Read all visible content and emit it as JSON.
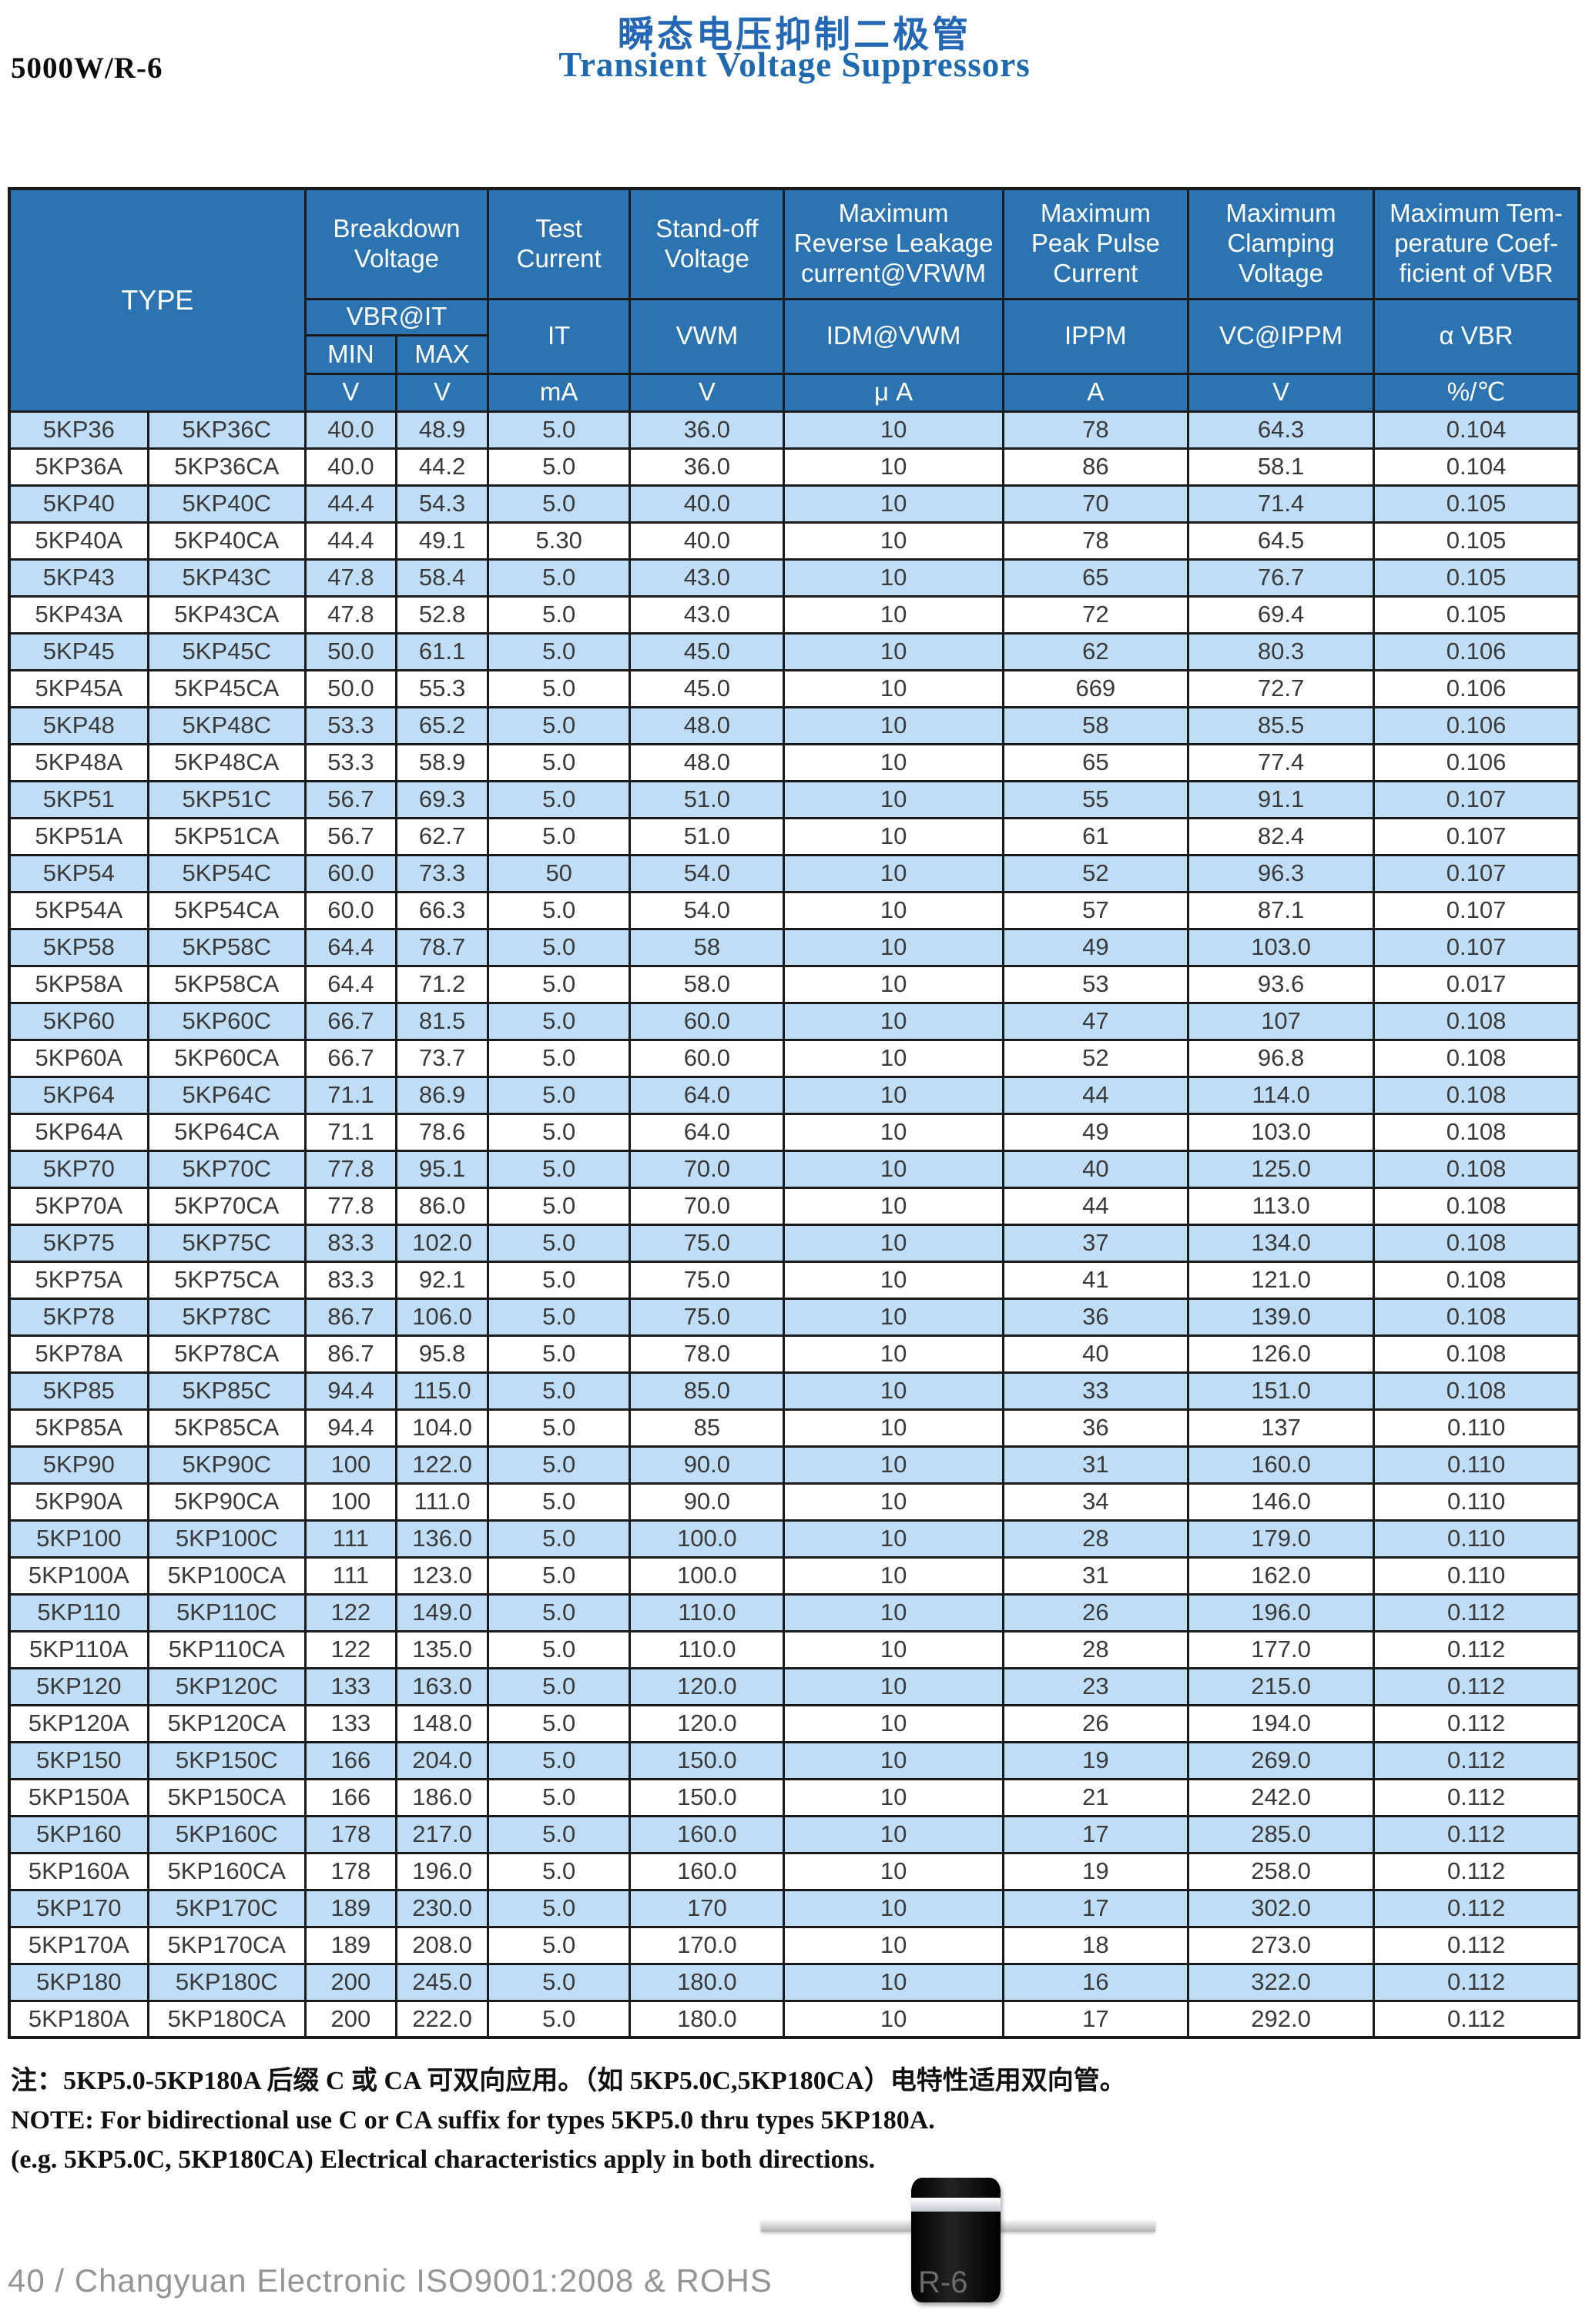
{
  "page": {
    "title_cn": "瞬态电压抑制二极管",
    "title_en": "Transient Voltage Suppressors",
    "part_series": "5000W/R-6",
    "footer_left": "40 / Changyuan Electronic  ISO9001:2008 & ROHS",
    "footer_right": "R-6"
  },
  "notes": {
    "cn": "注：5KP5.0-5KP180A 后缀 C 或 CA 可双向应用。（如 5KP5.0C,5KP180CA）电特性适用双向管。",
    "en1": "NOTE: For bidirectional use C or CA suffix for types 5KP5.0 thru types 5KP180A.",
    "en2": "(e.g. 5KP5.0C, 5KP180CA) Electrical characteristics apply in both directions."
  },
  "colors": {
    "header_bg": "#2b73b1",
    "row_alt_blue": "#bfdef6",
    "border": "#1b1b1b",
    "title_blue": "#2468b5"
  },
  "table": {
    "headers": {
      "type": "TYPE",
      "breakdown": "Breakdown\nVoltage",
      "test_current": "Test\nCurrent",
      "standoff": "Stand-off\nVoltage",
      "reverse_leakage": "Maximum\nReverse Leakage\ncurrent@VRWM",
      "peak_pulse": "Maximum\nPeak Pulse\nCurrent",
      "clamping": "Maximum\nClamping\nVoltage",
      "temp_coef": "Maximum Tem-\nperature Coef-\nficient of VBR",
      "vbr_it": "VBR@IT",
      "it": "IT",
      "vwm": "VWM",
      "idm": "IDM@VWM",
      "ippm": "IPPM",
      "vc": "VC@IPPM",
      "avbr": "α VBR",
      "min": "MIN",
      "max": "MAX",
      "units": [
        "V",
        "V",
        "mA",
        "V",
        "μ A",
        "A",
        "V",
        "%/℃"
      ]
    },
    "rows": [
      [
        "5KP36",
        "5KP36C",
        "40.0",
        "48.9",
        "5.0",
        "36.0",
        "10",
        "78",
        "64.3",
        "0.104"
      ],
      [
        "5KP36A",
        "5KP36CA",
        "40.0",
        "44.2",
        "5.0",
        "36.0",
        "10",
        "86",
        "58.1",
        "0.104"
      ],
      [
        "5KP40",
        "5KP40C",
        "44.4",
        "54.3",
        "5.0",
        "40.0",
        "10",
        "70",
        "71.4",
        "0.105"
      ],
      [
        "5KP40A",
        "5KP40CA",
        "44.4",
        "49.1",
        "5.30",
        "40.0",
        "10",
        "78",
        "64.5",
        "0.105"
      ],
      [
        "5KP43",
        "5KP43C",
        "47.8",
        "58.4",
        "5.0",
        "43.0",
        "10",
        "65",
        "76.7",
        "0.105"
      ],
      [
        "5KP43A",
        "5KP43CA",
        "47.8",
        "52.8",
        "5.0",
        "43.0",
        "10",
        "72",
        "69.4",
        "0.105"
      ],
      [
        "5KP45",
        "5KP45C",
        "50.0",
        "61.1",
        "5.0",
        "45.0",
        "10",
        "62",
        "80.3",
        "0.106"
      ],
      [
        "5KP45A",
        "5KP45CA",
        "50.0",
        "55.3",
        "5.0",
        "45.0",
        "10",
        "669",
        "72.7",
        "0.106"
      ],
      [
        "5KP48",
        "5KP48C",
        "53.3",
        "65.2",
        "5.0",
        "48.0",
        "10",
        "58",
        "85.5",
        "0.106"
      ],
      [
        "5KP48A",
        "5KP48CA",
        "53.3",
        "58.9",
        "5.0",
        "48.0",
        "10",
        "65",
        "77.4",
        "0.106"
      ],
      [
        "5KP51",
        "5KP51C",
        "56.7",
        "69.3",
        "5.0",
        "51.0",
        "10",
        "55",
        "91.1",
        "0.107"
      ],
      [
        "5KP51A",
        "5KP51CA",
        "56.7",
        "62.7",
        "5.0",
        "51.0",
        "10",
        "61",
        "82.4",
        "0.107"
      ],
      [
        "5KP54",
        "5KP54C",
        "60.0",
        "73.3",
        "50",
        "54.0",
        "10",
        "52",
        "96.3",
        "0.107"
      ],
      [
        "5KP54A",
        "5KP54CA",
        "60.0",
        "66.3",
        "5.0",
        "54.0",
        "10",
        "57",
        "87.1",
        "0.107"
      ],
      [
        "5KP58",
        "5KP58C",
        "64.4",
        "78.7",
        "5.0",
        "58",
        "10",
        "49",
        "103.0",
        "0.107"
      ],
      [
        "5KP58A",
        "5KP58CA",
        "64.4",
        "71.2",
        "5.0",
        "58.0",
        "10",
        "53",
        "93.6",
        "0.017"
      ],
      [
        "5KP60",
        "5KP60C",
        "66.7",
        "81.5",
        "5.0",
        "60.0",
        "10",
        "47",
        "107",
        "0.108"
      ],
      [
        "5KP60A",
        "5KP60CA",
        "66.7",
        "73.7",
        "5.0",
        "60.0",
        "10",
        "52",
        "96.8",
        "0.108"
      ],
      [
        "5KP64",
        "5KP64C",
        "71.1",
        "86.9",
        "5.0",
        "64.0",
        "10",
        "44",
        "114.0",
        "0.108"
      ],
      [
        "5KP64A",
        "5KP64CA",
        "71.1",
        "78.6",
        "5.0",
        "64.0",
        "10",
        "49",
        "103.0",
        "0.108"
      ],
      [
        "5KP70",
        "5KP70C",
        "77.8",
        "95.1",
        "5.0",
        "70.0",
        "10",
        "40",
        "125.0",
        "0.108"
      ],
      [
        "5KP70A",
        "5KP70CA",
        "77.8",
        "86.0",
        "5.0",
        "70.0",
        "10",
        "44",
        "113.0",
        "0.108"
      ],
      [
        "5KP75",
        "5KP75C",
        "83.3",
        "102.0",
        "5.0",
        "75.0",
        "10",
        "37",
        "134.0",
        "0.108"
      ],
      [
        "5KP75A",
        "5KP75CA",
        "83.3",
        "92.1",
        "5.0",
        "75.0",
        "10",
        "41",
        "121.0",
        "0.108"
      ],
      [
        "5KP78",
        "5KP78C",
        "86.7",
        "106.0",
        "5.0",
        "75.0",
        "10",
        "36",
        "139.0",
        "0.108"
      ],
      [
        "5KP78A",
        "5KP78CA",
        "86.7",
        "95.8",
        "5.0",
        "78.0",
        "10",
        "40",
        "126.0",
        "0.108"
      ],
      [
        "5KP85",
        "5KP85C",
        "94.4",
        "115.0",
        "5.0",
        "85.0",
        "10",
        "33",
        "151.0",
        "0.108"
      ],
      [
        "5KP85A",
        "5KP85CA",
        "94.4",
        "104.0",
        "5.0",
        "85",
        "10",
        "36",
        "137",
        "0.110"
      ],
      [
        "5KP90",
        "5KP90C",
        "100",
        "122.0",
        "5.0",
        "90.0",
        "10",
        "31",
        "160.0",
        "0.110"
      ],
      [
        "5KP90A",
        "5KP90CA",
        "100",
        "111.0",
        "5.0",
        "90.0",
        "10",
        "34",
        "146.0",
        "0.110"
      ],
      [
        "5KP100",
        "5KP100C",
        "111",
        "136.0",
        "5.0",
        "100.0",
        "10",
        "28",
        "179.0",
        "0.110"
      ],
      [
        "5KP100A",
        "5KP100CA",
        "111",
        "123.0",
        "5.0",
        "100.0",
        "10",
        "31",
        "162.0",
        "0.110"
      ],
      [
        "5KP110",
        "5KP110C",
        "122",
        "149.0",
        "5.0",
        "110.0",
        "10",
        "26",
        "196.0",
        "0.112"
      ],
      [
        "5KP110A",
        "5KP110CA",
        "122",
        "135.0",
        "5.0",
        "110.0",
        "10",
        "28",
        "177.0",
        "0.112"
      ],
      [
        "5KP120",
        "5KP120C",
        "133",
        "163.0",
        "5.0",
        "120.0",
        "10",
        "23",
        "215.0",
        "0.112"
      ],
      [
        "5KP120A",
        "5KP120CA",
        "133",
        "148.0",
        "5.0",
        "120.0",
        "10",
        "26",
        "194.0",
        "0.112"
      ],
      [
        "5KP150",
        "5KP150C",
        "166",
        "204.0",
        "5.0",
        "150.0",
        "10",
        "19",
        "269.0",
        "0.112"
      ],
      [
        "5KP150A",
        "5KP150CA",
        "166",
        "186.0",
        "5.0",
        "150.0",
        "10",
        "21",
        "242.0",
        "0.112"
      ],
      [
        "5KP160",
        "5KP160C",
        "178",
        "217.0",
        "5.0",
        "160.0",
        "10",
        "17",
        "285.0",
        "0.112"
      ],
      [
        "5KP160A",
        "5KP160CA",
        "178",
        "196.0",
        "5.0",
        "160.0",
        "10",
        "19",
        "258.0",
        "0.112"
      ],
      [
        "5KP170",
        "5KP170C",
        "189",
        "230.0",
        "5.0",
        "170",
        "10",
        "17",
        "302.0",
        "0.112"
      ],
      [
        "5KP170A",
        "5KP170CA",
        "189",
        "208.0",
        "5.0",
        "170.0",
        "10",
        "18",
        "273.0",
        "0.112"
      ],
      [
        "5KP180",
        "5KP180C",
        "200",
        "245.0",
        "5.0",
        "180.0",
        "10",
        "16",
        "322.0",
        "0.112"
      ],
      [
        "5KP180A",
        "5KP180CA",
        "200",
        "222.0",
        "5.0",
        "180.0",
        "10",
        "17",
        "292.0",
        "0.112"
      ]
    ]
  }
}
